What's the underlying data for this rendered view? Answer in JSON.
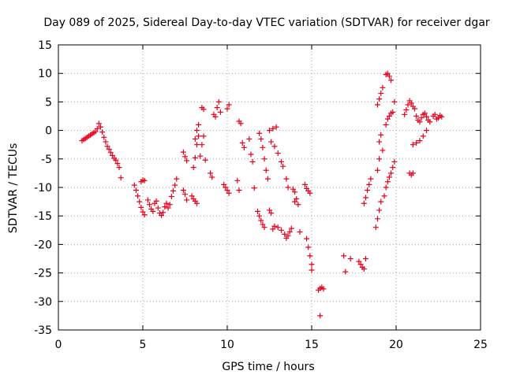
{
  "chart_data": {
    "type": "scatter",
    "title": "Day 089 of 2025, Sidereal Day-to-day VTEC variation (SDTVAR) for receiver dgar",
    "xlabel": "GPS time / hours",
    "ylabel": "SDTVAR / TECUs",
    "xlim": [
      0,
      25
    ],
    "ylim": [
      -35,
      15
    ],
    "x_ticks": [
      0,
      5,
      10,
      15,
      20,
      25
    ],
    "y_ticks": [
      15,
      10,
      5,
      0,
      -5,
      -10,
      -15,
      -20,
      -25,
      -30,
      -35
    ],
    "grid": true,
    "marker": "plus",
    "color": "#e8001c",
    "series": [
      {
        "points": [
          [
            1.4,
            -1.8
          ],
          [
            1.5,
            -1.6
          ],
          [
            1.6,
            -1.4
          ],
          [
            1.7,
            -1.2
          ],
          [
            1.8,
            -1.0
          ],
          [
            1.9,
            -0.8
          ],
          [
            2.0,
            -0.6
          ],
          [
            2.1,
            -0.4
          ],
          [
            2.2,
            -0.2
          ],
          [
            2.3,
            0.3
          ],
          [
            2.4,
            1.2
          ],
          [
            2.5,
            0.6
          ],
          [
            2.6,
            -0.3
          ],
          [
            2.7,
            -1.2
          ],
          [
            2.8,
            -2.0
          ],
          [
            2.9,
            -2.8
          ],
          [
            3.0,
            -3.3
          ],
          [
            3.1,
            -3.9
          ],
          [
            3.2,
            -4.4
          ],
          [
            3.3,
            -4.9
          ],
          [
            3.4,
            -5.2
          ],
          [
            3.5,
            -5.8
          ],
          [
            3.6,
            -6.5
          ],
          [
            3.7,
            -8.3
          ],
          [
            4.5,
            -9.6
          ],
          [
            4.6,
            -10.5
          ],
          [
            4.7,
            -11.5
          ],
          [
            4.8,
            -12.5
          ],
          [
            4.9,
            -13.5
          ],
          [
            5.0,
            -14.3
          ],
          [
            5.1,
            -14.8
          ],
          [
            4.9,
            -9.0
          ],
          [
            5.0,
            -8.7
          ],
          [
            5.1,
            -8.8
          ],
          [
            5.3,
            -12.2
          ],
          [
            5.4,
            -13.0
          ],
          [
            5.5,
            -13.8
          ],
          [
            5.6,
            -14.2
          ],
          [
            5.7,
            -12.8
          ],
          [
            5.8,
            -12.4
          ],
          [
            5.9,
            -13.6
          ],
          [
            6.0,
            -14.5
          ],
          [
            6.1,
            -14.9
          ],
          [
            6.2,
            -14.4
          ],
          [
            6.3,
            -13.4
          ],
          [
            6.4,
            -12.8
          ],
          [
            6.5,
            -13.6
          ],
          [
            6.6,
            -13.0
          ],
          [
            6.7,
            -11.6
          ],
          [
            6.8,
            -10.6
          ],
          [
            6.9,
            -9.6
          ],
          [
            7.0,
            -8.5
          ],
          [
            7.4,
            -3.8
          ],
          [
            7.5,
            -4.6
          ],
          [
            7.6,
            -5.3
          ],
          [
            7.4,
            -10.5
          ],
          [
            7.5,
            -11.2
          ],
          [
            7.6,
            -12.2
          ],
          [
            7.9,
            -11.5
          ],
          [
            8.0,
            -12.0
          ],
          [
            8.1,
            -12.4
          ],
          [
            8.2,
            -12.8
          ],
          [
            8.0,
            -6.5
          ],
          [
            8.1,
            -4.8
          ],
          [
            8.2,
            -2.5
          ],
          [
            8.3,
            -1.0
          ],
          [
            8.1,
            -1.5
          ],
          [
            8.2,
            0.0
          ],
          [
            8.3,
            1.0
          ],
          [
            8.5,
            4.0
          ],
          [
            8.6,
            3.7
          ],
          [
            8.4,
            -4.5
          ],
          [
            8.5,
            -2.5
          ],
          [
            8.6,
            -1.0
          ],
          [
            8.7,
            -5.2
          ],
          [
            9.0,
            -7.5
          ],
          [
            9.1,
            -8.2
          ],
          [
            9.2,
            2.8
          ],
          [
            9.3,
            2.4
          ],
          [
            9.4,
            4.0
          ],
          [
            9.5,
            5.0
          ],
          [
            9.6,
            3.2
          ],
          [
            9.8,
            -9.5
          ],
          [
            9.9,
            -10.0
          ],
          [
            10.0,
            -10.5
          ],
          [
            10.1,
            -11.0
          ],
          [
            10.0,
            3.8
          ],
          [
            10.1,
            4.5
          ],
          [
            10.6,
            -8.8
          ],
          [
            10.7,
            -10.5
          ],
          [
            10.7,
            1.6
          ],
          [
            10.8,
            1.2
          ],
          [
            10.9,
            -2.2
          ],
          [
            11.0,
            -3.0
          ],
          [
            11.3,
            -1.5
          ],
          [
            11.4,
            -4.2
          ],
          [
            11.5,
            -5.5
          ],
          [
            11.6,
            -10.1
          ],
          [
            11.8,
            -14.2
          ],
          [
            11.9,
            -15.0
          ],
          [
            12.0,
            -15.8
          ],
          [
            12.1,
            -16.5
          ],
          [
            12.2,
            -17.0
          ],
          [
            11.9,
            -0.5
          ],
          [
            12.0,
            -1.5
          ],
          [
            12.1,
            -3.0
          ],
          [
            12.2,
            -5.0
          ],
          [
            12.3,
            -7.0
          ],
          [
            12.4,
            -8.5
          ],
          [
            12.5,
            -14.0
          ],
          [
            12.6,
            -14.5
          ],
          [
            12.7,
            -17.3
          ],
          [
            12.8,
            -16.8
          ],
          [
            12.5,
            0.0
          ],
          [
            12.7,
            0.3
          ],
          [
            12.9,
            0.6
          ],
          [
            12.6,
            -2.0
          ],
          [
            12.8,
            -2.8
          ],
          [
            13.0,
            -4.0
          ],
          [
            13.2,
            -5.5
          ],
          [
            13.3,
            -6.3
          ],
          [
            13.0,
            -17.0
          ],
          [
            13.2,
            -17.5
          ],
          [
            13.4,
            -18.2
          ],
          [
            13.5,
            -18.9
          ],
          [
            13.6,
            -18.5
          ],
          [
            13.7,
            -17.8
          ],
          [
            13.8,
            -17.2
          ],
          [
            13.5,
            -8.5
          ],
          [
            13.6,
            -10.0
          ],
          [
            13.9,
            -10.3
          ],
          [
            14.0,
            -10.8
          ],
          [
            14.1,
            -12.0
          ],
          [
            14.2,
            -13.0
          ],
          [
            14.0,
            -12.5
          ],
          [
            14.3,
            -17.8
          ],
          [
            14.6,
            -9.5
          ],
          [
            14.7,
            -10.2
          ],
          [
            14.8,
            -10.6
          ],
          [
            14.9,
            -11.0
          ],
          [
            14.7,
            -19.0
          ],
          [
            14.8,
            -20.5
          ],
          [
            14.9,
            -22.0
          ],
          [
            15.0,
            -23.5
          ],
          [
            15.0,
            -24.5
          ],
          [
            15.4,
            -28.0
          ],
          [
            15.5,
            -27.7
          ],
          [
            15.6,
            -27.5
          ],
          [
            15.7,
            -27.8
          ],
          [
            15.5,
            -32.5
          ],
          [
            16.9,
            -22.0
          ],
          [
            17.0,
            -24.8
          ],
          [
            17.3,
            -22.5
          ],
          [
            17.8,
            -23.0
          ],
          [
            17.9,
            -23.5
          ],
          [
            18.0,
            -24.0
          ],
          [
            18.1,
            -24.3
          ],
          [
            18.2,
            -22.5
          ],
          [
            18.1,
            -12.8
          ],
          [
            18.2,
            -11.8
          ],
          [
            18.3,
            -10.5
          ],
          [
            18.4,
            -9.5
          ],
          [
            18.5,
            -8.5
          ],
          [
            18.8,
            -17.0
          ],
          [
            18.9,
            -15.5
          ],
          [
            19.0,
            -14.0
          ],
          [
            19.1,
            -12.5
          ],
          [
            19.0,
            -2.0
          ],
          [
            19.1,
            -0.8
          ],
          [
            19.2,
            -3.5
          ],
          [
            19.0,
            -5.0
          ],
          [
            18.9,
            -7.0
          ],
          [
            18.9,
            4.5
          ],
          [
            19.0,
            5.5
          ],
          [
            19.1,
            6.5
          ],
          [
            19.2,
            7.5
          ],
          [
            19.3,
            -11.5
          ],
          [
            19.4,
            -10.0
          ],
          [
            19.5,
            -9.0
          ],
          [
            19.6,
            -8.2
          ],
          [
            19.7,
            -7.5
          ],
          [
            19.8,
            -6.5
          ],
          [
            19.9,
            -5.5
          ],
          [
            19.4,
            1.0
          ],
          [
            19.5,
            2.0
          ],
          [
            19.6,
            2.5
          ],
          [
            19.7,
            3.0
          ],
          [
            19.8,
            3.2
          ],
          [
            19.4,
            9.8
          ],
          [
            19.5,
            10.0
          ],
          [
            19.6,
            9.5
          ],
          [
            19.7,
            8.8
          ],
          [
            19.9,
            5.0
          ],
          [
            20.5,
            2.8
          ],
          [
            20.6,
            3.6
          ],
          [
            20.7,
            4.5
          ],
          [
            20.8,
            5.2
          ],
          [
            20.9,
            4.8
          ],
          [
            21.0,
            4.2
          ],
          [
            21.1,
            3.8
          ],
          [
            21.2,
            2.5
          ],
          [
            21.3,
            1.8
          ],
          [
            21.4,
            1.5
          ],
          [
            21.5,
            2.2
          ],
          [
            21.6,
            2.8
          ],
          [
            21.7,
            3.0
          ],
          [
            21.8,
            2.4
          ],
          [
            20.8,
            -7.5
          ],
          [
            20.9,
            -7.8
          ],
          [
            21.0,
            -7.5
          ],
          [
            21.0,
            -2.5
          ],
          [
            21.2,
            -2.2
          ],
          [
            21.4,
            -1.8
          ],
          [
            21.6,
            -1.0
          ],
          [
            21.8,
            0.0
          ],
          [
            21.9,
            1.8
          ],
          [
            22.0,
            1.5
          ],
          [
            22.2,
            2.5
          ],
          [
            22.3,
            2.8
          ],
          [
            22.4,
            2.0
          ],
          [
            22.5,
            2.2
          ],
          [
            22.6,
            2.6
          ],
          [
            22.7,
            2.4
          ]
        ]
      }
    ]
  }
}
